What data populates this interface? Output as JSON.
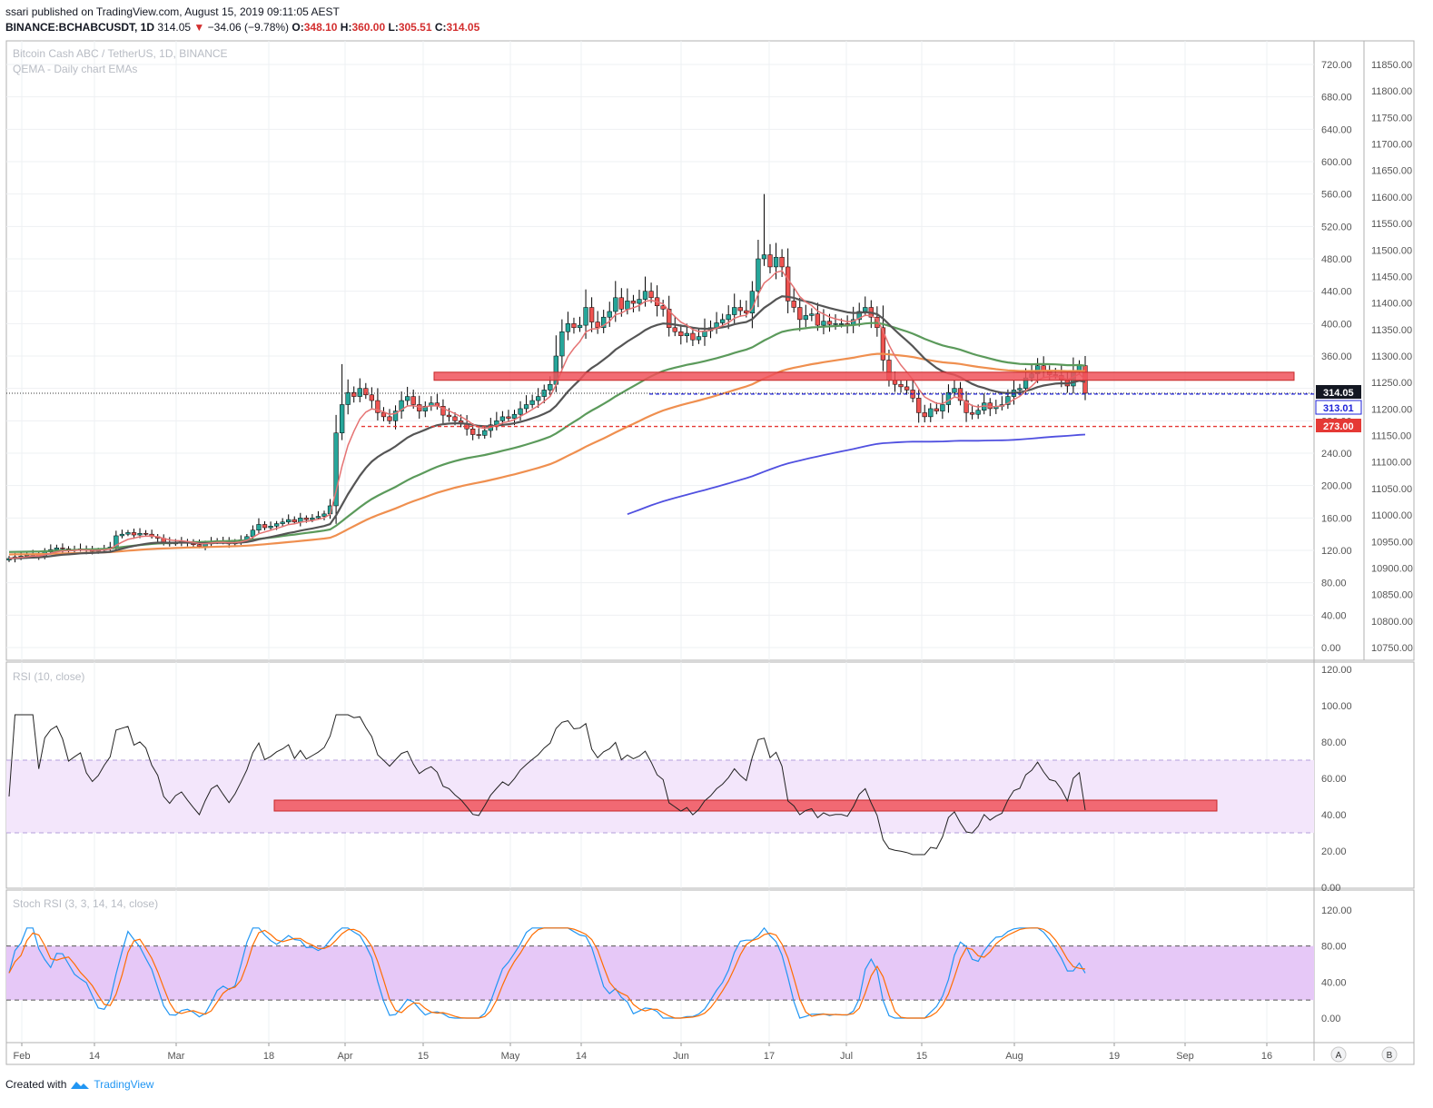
{
  "header": {
    "author": "ssari",
    "published_text": "published on TradingView.com, August 15, 2019 09:11:05 AEST",
    "symbol": "BINANCE:BCHABCUSDT, 1D",
    "last": "314.05",
    "change_arrow": "▼",
    "change": "−34.06 (−9.78%)",
    "o_label": "O:",
    "o": "348.10",
    "h_label": "H:",
    "h": "360.00",
    "l_label": "L:",
    "l": "305.51",
    "c_label": "C:",
    "c": "314.05"
  },
  "footer": {
    "created_with": "Created with",
    "brand": "TradingView"
  },
  "buttons": {
    "a": "A",
    "b": "B"
  },
  "colors": {
    "up": "#26a69a",
    "down": "#ef5350",
    "ema_fast": "#e57373",
    "ema_dark": "#555555",
    "ema_green": "#5b9a5b",
    "ema_orange": "#ef8f4f",
    "ema_blue": "#5050e0",
    "zone": "#f0525a",
    "rsi_band": "#f3e6fb",
    "stoch_band": "#e6c8f7"
  },
  "chart_data": [
    {
      "type": "candlestick",
      "title": "Bitcoin Cash ABC / TetherUS, 1D, BINANCE",
      "subtitle": "QEMA - Daily chart EMAs",
      "x_ticks": [
        "Feb",
        "14",
        "Mar",
        "18",
        "Apr",
        "15",
        "May",
        "14",
        "Jun",
        "17",
        "Jul",
        "15",
        "Aug",
        "19",
        "Sep",
        "16"
      ],
      "y_left_ticks": [
        "720.00",
        "680.00",
        "640.00",
        "600.00",
        "560.00",
        "520.00",
        "480.00",
        "440.00",
        "400.00",
        "360.00",
        "320.00",
        "280.00",
        "240.00",
        "200.00",
        "160.00",
        "120.00",
        "80.00",
        "40.00",
        "0.00"
      ],
      "y_right_ticks": [
        "11850.00",
        "11800.00",
        "11750.00",
        "11700.00",
        "11650.00",
        "11600.00",
        "11550.00",
        "11500.00",
        "11450.00",
        "11400.00",
        "11350.00",
        "11300.00",
        "11250.00",
        "11200.00",
        "11150.00",
        "11100.00",
        "11050.00",
        "11000.00",
        "10950.00",
        "10900.00",
        "10850.00",
        "10800.00",
        "10750.00"
      ],
      "price_labels": [
        {
          "text": "314.05",
          "color": "#131722"
        },
        {
          "text": "313.01",
          "color": "#1e22d8"
        },
        {
          "text": "273.00",
          "color": "#e53935"
        }
      ],
      "ylim": [
        0,
        740
      ],
      "closes": [
        110,
        112,
        113,
        114,
        115,
        113,
        118,
        121,
        123,
        122,
        120,
        121,
        122,
        120,
        119,
        120,
        122,
        124,
        138,
        140,
        142,
        139,
        141,
        140,
        137,
        135,
        130,
        128,
        130,
        131,
        129,
        127,
        125,
        128,
        131,
        132,
        130,
        128,
        130,
        133,
        137,
        145,
        152,
        148,
        150,
        153,
        155,
        158,
        155,
        160,
        158,
        160,
        162,
        165,
        175,
        265,
        300,
        315,
        310,
        320,
        312,
        305,
        290,
        285,
        280,
        292,
        305,
        310,
        300,
        292,
        298,
        302,
        298,
        287,
        285,
        280,
        276,
        270,
        263,
        262,
        268,
        275,
        280,
        285,
        283,
        288,
        295,
        300,
        305,
        310,
        318,
        325,
        360,
        390,
        400,
        395,
        398,
        420,
        402,
        395,
        408,
        415,
        432,
        418,
        428,
        425,
        430,
        440,
        432,
        422,
        418,
        395,
        390,
        385,
        388,
        380,
        384,
        391,
        395,
        401,
        405,
        411,
        420,
        416,
        413,
        440,
        480,
        485,
        470,
        482,
        470,
        428,
        420,
        405,
        410,
        412,
        398,
        403,
        399,
        400,
        400,
        398,
        405,
        415,
        420,
        408,
        395,
        355,
        330,
        325,
        322,
        318,
        308,
        290,
        285,
        295,
        292,
        300,
        315,
        320,
        305,
        290,
        288,
        293,
        302,
        295,
        298,
        300,
        310,
        318,
        320,
        333,
        338,
        348,
        342,
        337,
        336,
        331,
        323,
        342,
        348,
        314
      ],
      "ema_series": [
        "ema fast (red)",
        "ema (dark grey)",
        "ema (green)",
        "ema (orange)",
        "ema (blue)"
      ],
      "horizontal_levels": [
        {
          "value": 313.01,
          "style": "dashed blue"
        },
        {
          "value": 273.0,
          "style": "dashed red"
        },
        {
          "value": 314.05,
          "style": "dotted black"
        }
      ],
      "zone": {
        "low": 330,
        "high": 340
      }
    },
    {
      "type": "line",
      "title": "RSI (10, close)",
      "y_ticks": [
        "120.00",
        "100.00",
        "80.00",
        "60.00",
        "40.00",
        "20.00",
        "0.00"
      ],
      "band": [
        30,
        70
      ],
      "zone": {
        "low": 42,
        "high": 48
      }
    },
    {
      "type": "line",
      "title": "Stoch RSI (3, 3, 14, 14, close)",
      "y_ticks": [
        "120.00",
        "80.00",
        "40.00",
        "0.00"
      ],
      "band": [
        20,
        80
      ]
    }
  ]
}
